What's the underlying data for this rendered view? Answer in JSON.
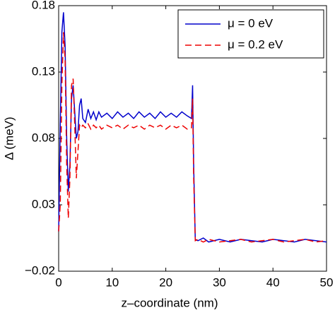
{
  "chart_data": {
    "type": "line",
    "xlabel": "z–coordinate (nm)",
    "ylabel": "Δ (meV)",
    "x": [
      0,
      0.3,
      0.6,
      0.9,
      1.2,
      1.5,
      1.8,
      2.1,
      2.4,
      2.7,
      3.0,
      3.3,
      3.6,
      3.9,
      4.2,
      4.5,
      5,
      5.5,
      6,
      6.5,
      7,
      7.5,
      8,
      9,
      10,
      11,
      12,
      13,
      14,
      15,
      16,
      17,
      18,
      19,
      20,
      21,
      22,
      23,
      24,
      24.8,
      25,
      25.2,
      25.5,
      26,
      27,
      28,
      30,
      32,
      34,
      36,
      38,
      40,
      42,
      44,
      46,
      48,
      50
    ],
    "series": [
      {
        "name": "μ = 0 eV",
        "color": "#0000cc",
        "dash": "solid",
        "values": [
          0.01,
          0.09,
          0.16,
          0.175,
          0.15,
          0.08,
          0.04,
          0.06,
          0.11,
          0.12,
          0.1,
          0.08,
          0.085,
          0.105,
          0.11,
          0.095,
          0.092,
          0.102,
          0.095,
          0.1,
          0.094,
          0.1,
          0.096,
          0.099,
          0.095,
          0.1,
          0.096,
          0.099,
          0.095,
          0.1,
          0.096,
          0.099,
          0.095,
          0.1,
          0.096,
          0.099,
          0.096,
          0.1,
          0.097,
          0.095,
          0.12,
          0.06,
          0.004,
          0.003,
          0.005,
          0.002,
          0.004,
          0.002,
          0.004,
          0.003,
          0.002,
          0.004,
          0.003,
          0.002,
          0.004,
          0.003,
          0.002
        ]
      },
      {
        "name": "μ = 0.2 eV",
        "color": "#ee0000",
        "dash": "dashed",
        "values": [
          0.01,
          0.03,
          0.12,
          0.16,
          0.14,
          0.06,
          0.02,
          0.05,
          0.12,
          0.125,
          0.09,
          0.05,
          0.07,
          0.09,
          0.088,
          0.09,
          0.088,
          0.091,
          0.087,
          0.09,
          0.088,
          0.09,
          0.087,
          0.09,
          0.088,
          0.09,
          0.087,
          0.09,
          0.088,
          0.09,
          0.087,
          0.09,
          0.088,
          0.09,
          0.087,
          0.09,
          0.088,
          0.09,
          0.087,
          0.088,
          0.11,
          0.05,
          0.003,
          0.004,
          0.002,
          0.004,
          0.002,
          0.003,
          0.004,
          0.002,
          0.003,
          0.004,
          0.002,
          0.003,
          0.004,
          0.002,
          0.003
        ]
      }
    ],
    "xlim": [
      0,
      50
    ],
    "xticks": [
      0,
      10,
      20,
      30,
      40,
      50
    ],
    "ylim": [
      -0.02,
      0.18
    ],
    "yticks": [
      {
        "value": -0.02,
        "label": "−0.02"
      },
      0.03,
      0.08,
      0.13,
      0.18
    ],
    "legend": "upper right",
    "grid": false
  }
}
